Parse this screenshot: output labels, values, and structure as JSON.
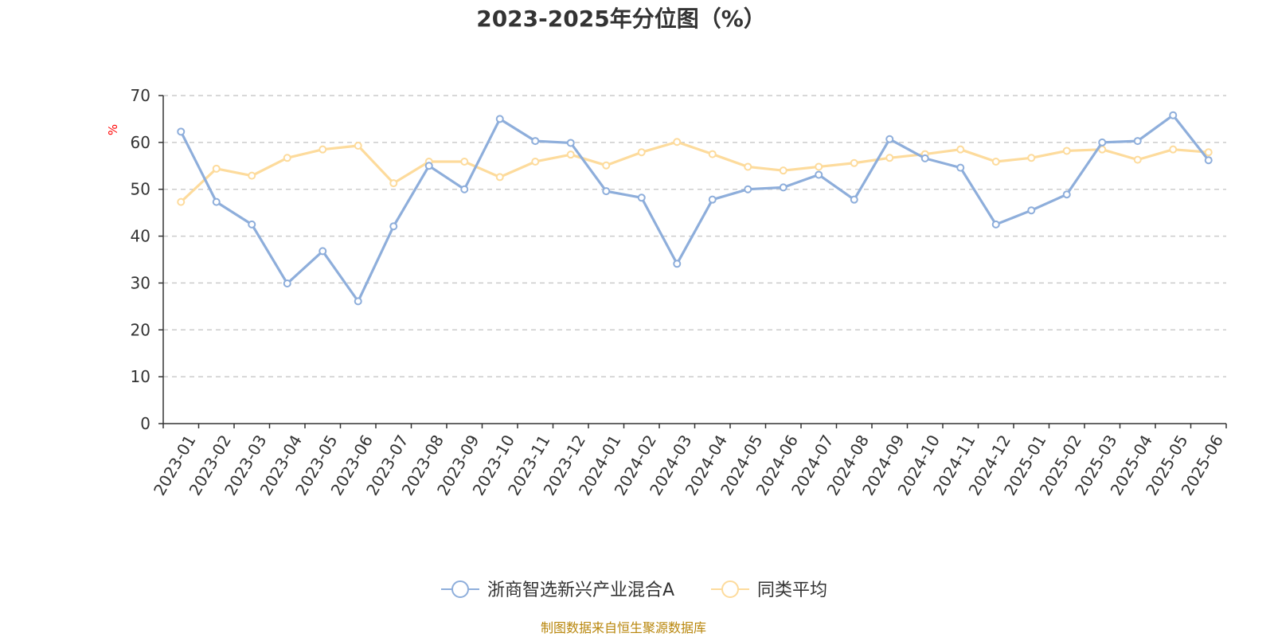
{
  "chart_data": {
    "type": "line",
    "title": "2023-2025年分位图（%）",
    "ylabel": "%",
    "xlabel": "",
    "ylim": [
      0,
      70
    ],
    "yticks": [
      0,
      10,
      20,
      30,
      40,
      50,
      60,
      70
    ],
    "grid": true,
    "legend_position": "bottom-center",
    "categories": [
      "2023-01",
      "2023-02",
      "2023-03",
      "2023-04",
      "2023-05",
      "2023-06",
      "2023-07",
      "2023-08",
      "2023-09",
      "2023-10",
      "2023-11",
      "2023-12",
      "2024-01",
      "2024-02",
      "2024-03",
      "2024-04",
      "2024-05",
      "2024-06",
      "2024-07",
      "2024-08",
      "2024-09",
      "2024-10",
      "2024-11",
      "2024-12",
      "2025-01",
      "2025-02",
      "2025-03",
      "2025-04",
      "2025-05",
      "2025-06"
    ],
    "series": [
      {
        "name": "浙商智选新兴产业混合A",
        "color": "#8eaedb",
        "values": [
          62.3,
          47.3,
          42.5,
          29.9,
          36.8,
          26.1,
          42.1,
          55.0,
          50.0,
          65.0,
          60.3,
          59.9,
          49.6,
          48.2,
          34.1,
          47.8,
          50.0,
          50.4,
          53.1,
          47.8,
          60.7,
          56.6,
          54.6,
          42.5,
          45.5,
          48.9,
          60.0,
          60.3,
          65.8,
          56.2
        ]
      },
      {
        "name": "同类平均",
        "color": "#fddb9c",
        "values": [
          47.3,
          54.4,
          52.9,
          56.7,
          58.5,
          59.3,
          51.3,
          55.9,
          55.9,
          52.6,
          55.9,
          57.4,
          55.1,
          57.9,
          60.1,
          57.5,
          54.8,
          54.0,
          54.8,
          55.6,
          56.7,
          57.5,
          58.5,
          55.9,
          56.7,
          58.2,
          58.5,
          56.3,
          58.5,
          57.9
        ]
      }
    ]
  },
  "source_note": "制图数据来自恒生聚源数据库"
}
